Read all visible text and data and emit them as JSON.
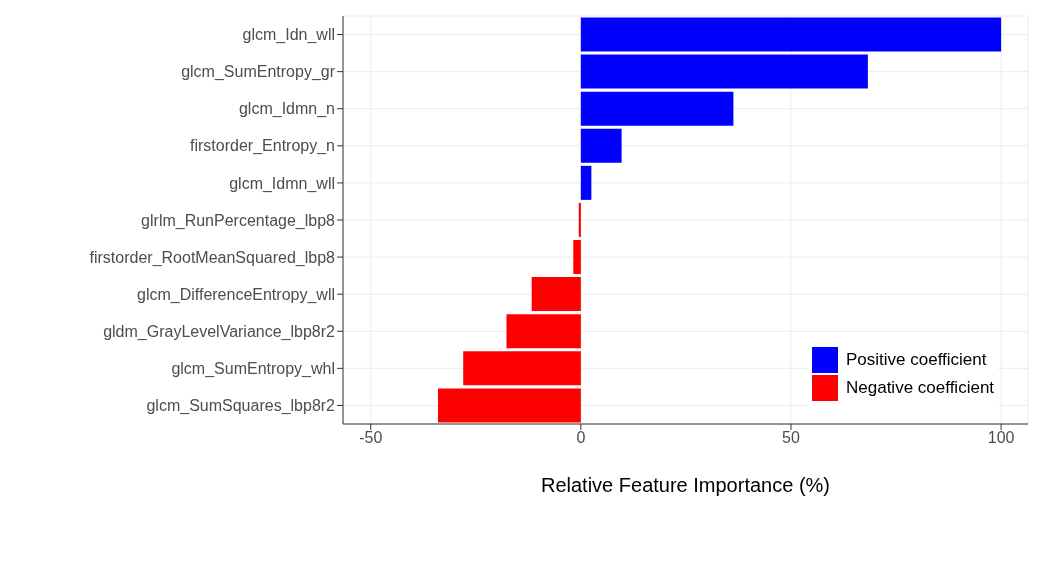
{
  "chart_data": {
    "type": "bar",
    "orientation": "horizontal",
    "stacked": true,
    "xlabel": "Relative Feature Importance (%)",
    "categories": [
      "glcm_Idn_wll",
      "glcm_SumEntropy_gr",
      "glcm_Idmn_n",
      "firstorder_Entropy_n",
      "glcm_Idmn_wll",
      "glrlm_RunPercentage_lbp8",
      "firstorder_RootMeanSquared_lbp8",
      "glcm_DifferenceEntropy_wll",
      "gldm_GrayLevelVariance_lbp8r2",
      "glcm_SumEntropy_whl",
      "glcm_SumSquares_lbp8r2"
    ],
    "series": [
      {
        "name": "Positive coefficient",
        "color": "#0000ff",
        "values": [
          100,
          68.3,
          36.3,
          9.7,
          2.5,
          null,
          null,
          null,
          null,
          null,
          null
        ]
      },
      {
        "name": "Negative coefficient",
        "color": "#ff0000",
        "values": [
          null,
          null,
          null,
          null,
          null,
          -0.5,
          -1.8,
          -11.7,
          -17.7,
          -28,
          -34
        ]
      }
    ],
    "xlim": [
      -56.6,
      106.4
    ],
    "xticks": [
      -50,
      0,
      50,
      100
    ],
    "grid": true,
    "legend": "bottom right"
  }
}
